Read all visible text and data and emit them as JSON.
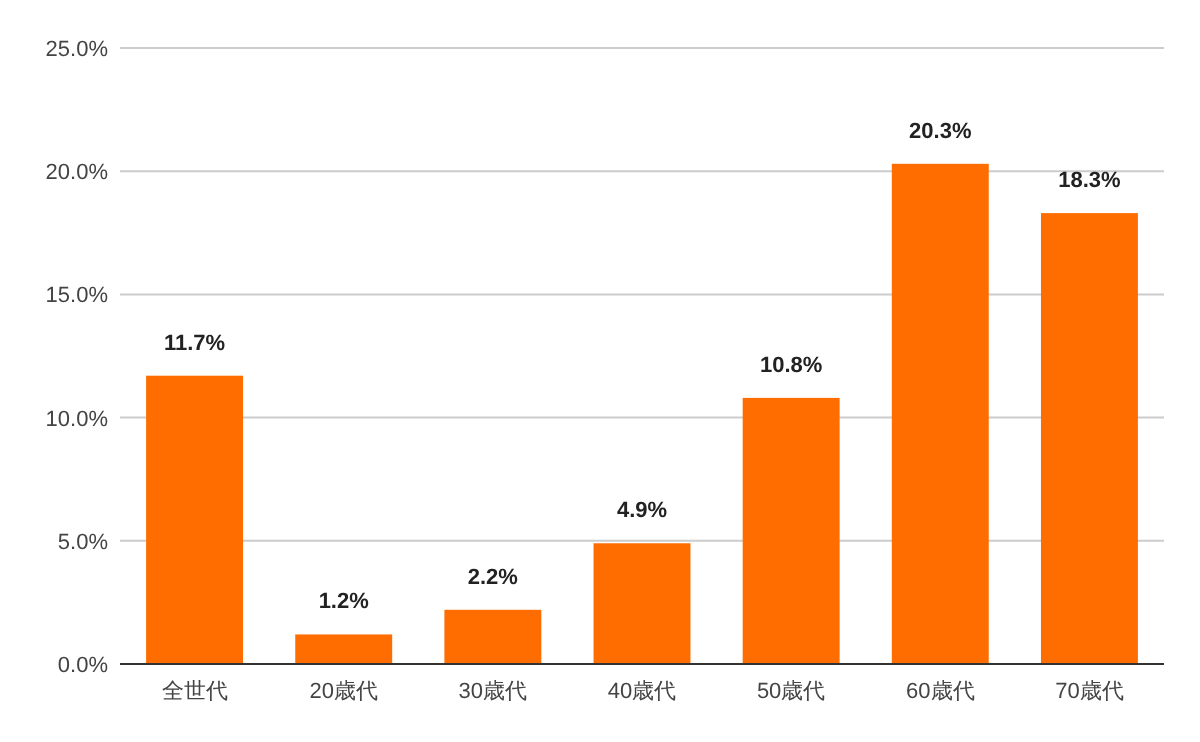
{
  "chart_data": {
    "type": "bar",
    "categories": [
      "全世代",
      "20歳代",
      "30歳代",
      "40歳代",
      "50歳代",
      "60歳代",
      "70歳代"
    ],
    "values": [
      11.7,
      1.2,
      2.2,
      4.9,
      10.8,
      20.3,
      18.3
    ],
    "value_labels": [
      "11.7%",
      "1.2%",
      "2.2%",
      "4.9%",
      "10.8%",
      "20.3%",
      "18.3%"
    ],
    "color": "#ff6d01",
    "ylim": [
      0,
      25
    ],
    "yticks": [
      {
        "value": 0,
        "label": "0.0%"
      },
      {
        "value": 5,
        "label": "5.0%"
      },
      {
        "value": 10,
        "label": "10.0%"
      },
      {
        "value": 15,
        "label": "15.0%"
      },
      {
        "value": 20,
        "label": "20.0%"
      },
      {
        "value": 25,
        "label": "25.0%"
      }
    ],
    "grid": "y"
  }
}
